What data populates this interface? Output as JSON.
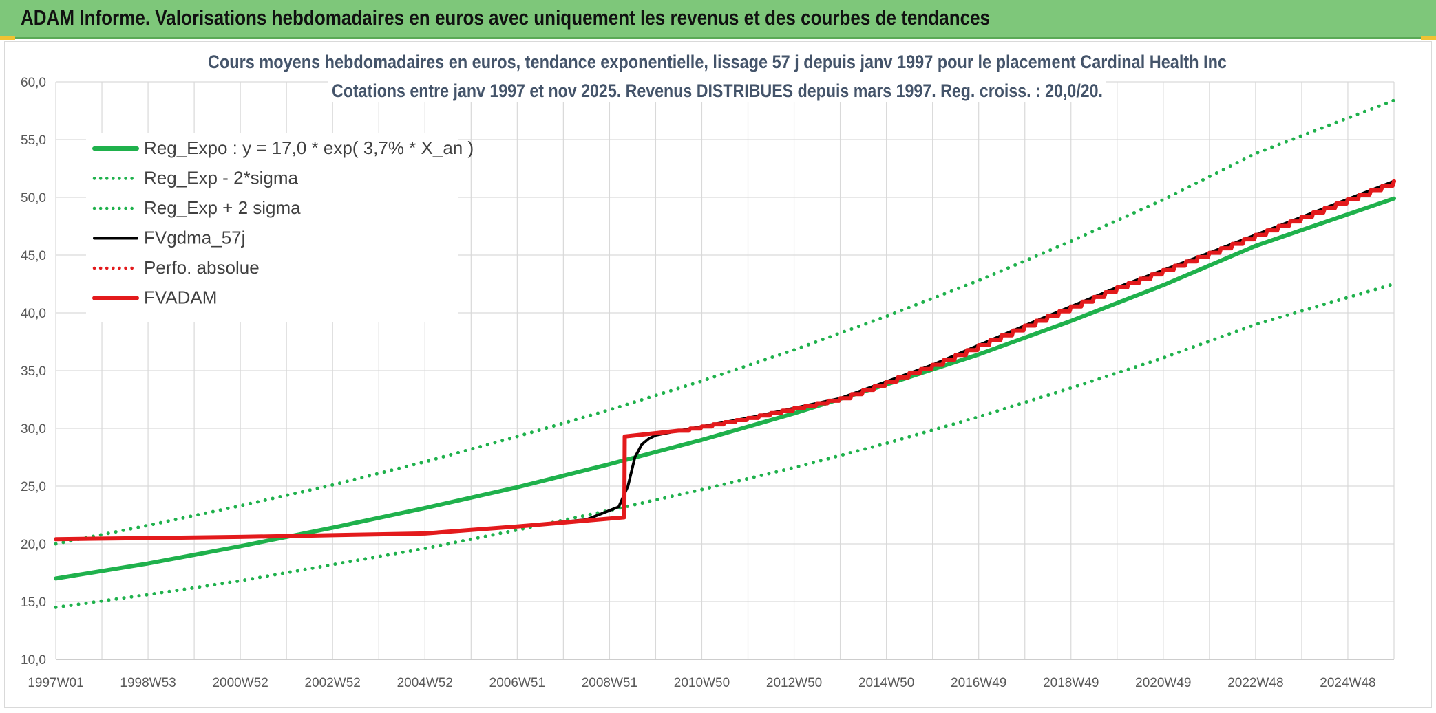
{
  "header": {
    "title": "ADAM Informe. Valorisations hebdomadaires en euros avec uniquement les revenus et des courbes de tendances"
  },
  "chart_data": {
    "type": "line",
    "title": "Cours moyens hebdomadaires en euros, tendance exponentielle, lissage 57 j depuis janv 1997 pour le placement Cardinal Health Inc",
    "subtitle": "Cotations entre janv 1997 et nov 2025. Revenus DISTRIBUES depuis mars 1997. Reg. croiss. : 20,0/20.",
    "xlabel": "",
    "ylabel": "",
    "ylim": [
      10,
      60
    ],
    "y_ticks": [
      "10,0",
      "15,0",
      "20,0",
      "25,0",
      "30,0",
      "35,0",
      "40,0",
      "45,0",
      "50,0",
      "55,0",
      "60,0"
    ],
    "x_tick_labels": [
      "1997W01",
      "1998W53",
      "2000W52",
      "2002W52",
      "2004W52",
      "2006W51",
      "2008W51",
      "2010W50",
      "2012W50",
      "2014W50",
      "2016W49",
      "2018W49",
      "2020W49",
      "2022W48",
      "2024W48"
    ],
    "x_range_years": [
      1997.0,
      2026.0
    ],
    "grid": true,
    "legend_position": "top-left",
    "series": [
      {
        "name": "Reg_Expo : y = 17,0 * exp( 3,7% *  X_an )",
        "style": "solid",
        "color": "#1fb14c",
        "x": [
          1997,
          1999,
          2001,
          2003,
          2005,
          2007,
          2009,
          2011,
          2013,
          2015,
          2017,
          2019,
          2021,
          2023,
          2026
        ],
        "values": [
          17.0,
          18.3,
          19.8,
          21.4,
          23.1,
          24.9,
          26.9,
          29.0,
          31.3,
          33.8,
          36.4,
          39.3,
          42.4,
          45.8,
          49.9
        ]
      },
      {
        "name": "Reg_Exp - 2*sigma",
        "style": "dotted",
        "color": "#1fb14c",
        "x": [
          1997,
          1999,
          2001,
          2003,
          2005,
          2007,
          2009,
          2011,
          2013,
          2015,
          2017,
          2019,
          2021,
          2023,
          2026
        ],
        "values": [
          14.5,
          15.6,
          16.8,
          18.2,
          19.6,
          21.2,
          22.9,
          24.7,
          26.6,
          28.7,
          31.0,
          33.5,
          36.1,
          39.0,
          42.5
        ]
      },
      {
        "name": "Reg_Exp + 2 sigma",
        "style": "dotted",
        "color": "#1fb14c",
        "x": [
          1997,
          1999,
          2001,
          2003,
          2005,
          2007,
          2009,
          2011,
          2013,
          2015,
          2017,
          2019,
          2021,
          2023,
          2026
        ],
        "values": [
          20.0,
          21.6,
          23.3,
          25.1,
          27.1,
          29.3,
          31.6,
          34.1,
          36.8,
          39.7,
          42.8,
          46.2,
          49.8,
          53.8,
          58.4
        ]
      },
      {
        "name": "FVgdma_57j",
        "style": "solid",
        "color": "#000000",
        "x": [
          1997,
          2001,
          2005,
          2007,
          2008.5,
          2009.2,
          2009.4,
          2009.55,
          2009.7,
          2009.85,
          2010.0,
          2010.5,
          2012,
          2014,
          2016,
          2018,
          2020,
          2022,
          2024,
          2026
        ],
        "values": [
          20.4,
          20.6,
          20.9,
          21.5,
          22.1,
          23.2,
          25.0,
          27.5,
          28.6,
          29.1,
          29.4,
          29.8,
          30.9,
          32.6,
          35.5,
          38.9,
          42.2,
          45.2,
          48.3,
          51.4
        ]
      },
      {
        "name": "Perfo. absolue",
        "style": "dotted",
        "color": "#e31a1c",
        "x": [
          1997,
          2001,
          2005,
          2007,
          2009.32,
          2009.33,
          2010.5,
          2012,
          2014,
          2016,
          2018,
          2020,
          2022,
          2024,
          2026
        ],
        "values": [
          20.4,
          20.6,
          20.9,
          21.5,
          22.3,
          29.3,
          29.8,
          30.9,
          32.6,
          35.5,
          38.9,
          42.2,
          45.2,
          48.3,
          51.4
        ]
      },
      {
        "name": "FVADAM",
        "style": "solid",
        "color": "#e31a1c",
        "x": [
          1997,
          2001,
          2005,
          2007,
          2009.32,
          2009.33,
          2010.5,
          2012,
          2014,
          2016,
          2018,
          2020,
          2022,
          2024,
          2026
        ],
        "values": [
          20.4,
          20.6,
          20.9,
          21.5,
          22.3,
          29.3,
          29.8,
          30.9,
          32.6,
          35.5,
          38.9,
          42.2,
          45.2,
          48.3,
          51.4
        ]
      }
    ]
  }
}
